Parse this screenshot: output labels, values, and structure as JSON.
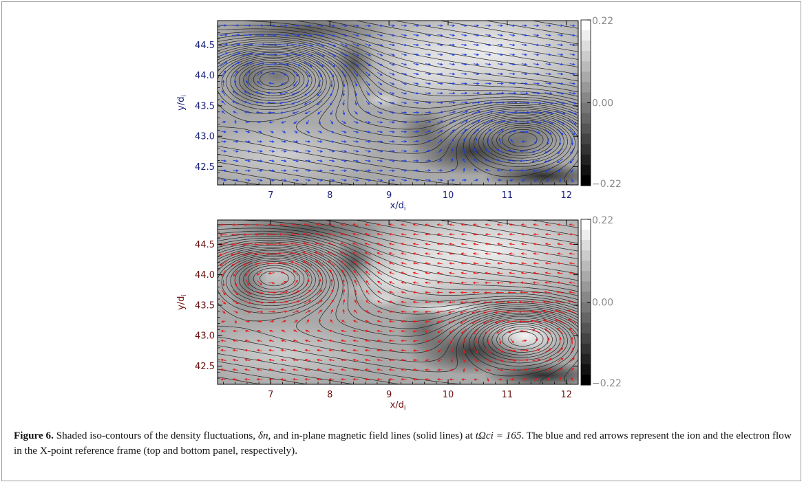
{
  "figure": {
    "label": "Figure 6.",
    "caption_text_1": " Shaded iso-contours of the density fluctuations, ",
    "caption_delta_n": "δn",
    "caption_text_2": ", and in-plane magnetic field lines (solid lines) at ",
    "caption_time": "tΩci = 165",
    "caption_text_3": ". The blue and red arrows represent the ion and the electron flow in the X-point reference frame (top and bottom panel, respectively)."
  },
  "colors": {
    "ion_arrows": "#1f3fe0",
    "electron_arrows": "#e51a1a",
    "top_axis_labels": "#1a237e",
    "bottom_axis_labels": "#6b1010",
    "field_lines": "#222222"
  },
  "chart_data": [
    {
      "type": "heatmap",
      "panel": "top",
      "xlabel": "x/d",
      "xlabel_sub": "i",
      "ylabel": "y/d",
      "ylabel_sub": "i",
      "xlim": [
        6.1,
        12.2
      ],
      "ylim": [
        42.2,
        44.9
      ],
      "x_ticks": [
        7,
        8,
        9,
        10,
        11,
        12
      ],
      "x_tick_labels": [
        "7",
        "8",
        "9",
        "10",
        "11",
        "12"
      ],
      "y_ticks": [
        42.5,
        43.0,
        43.5,
        44.0,
        44.5
      ],
      "y_tick_labels": [
        "42.5",
        "43.0",
        "43.5",
        "44.0",
        "44.5"
      ],
      "colorbar": {
        "range": [
          -0.22,
          0.22
        ],
        "tick_values": [
          0.22,
          0.0,
          -0.22
        ],
        "tick_labels": [
          "0.22",
          "0.00",
          "−0.22"
        ]
      },
      "arrows": "ion flow (blue)"
    },
    {
      "type": "heatmap",
      "panel": "bottom",
      "xlabel": "x/d",
      "xlabel_sub": "i",
      "ylabel": "y/d",
      "ylabel_sub": "i",
      "xlim": [
        6.1,
        12.2
      ],
      "ylim": [
        42.2,
        44.9
      ],
      "x_ticks": [
        7,
        8,
        9,
        10,
        11,
        12
      ],
      "x_tick_labels": [
        "7",
        "8",
        "9",
        "10",
        "11",
        "12"
      ],
      "y_ticks": [
        42.5,
        43.0,
        43.5,
        44.0,
        44.5
      ],
      "y_tick_labels": [
        "42.5",
        "43.0",
        "43.5",
        "44.0",
        "44.5"
      ],
      "colorbar": {
        "range": [
          -0.22,
          0.22
        ],
        "tick_values": [
          0.22,
          0.0,
          -0.22
        ],
        "tick_labels": [
          "0.22",
          "0.00",
          "−0.22"
        ]
      },
      "arrows": "electron flow (red)"
    }
  ]
}
